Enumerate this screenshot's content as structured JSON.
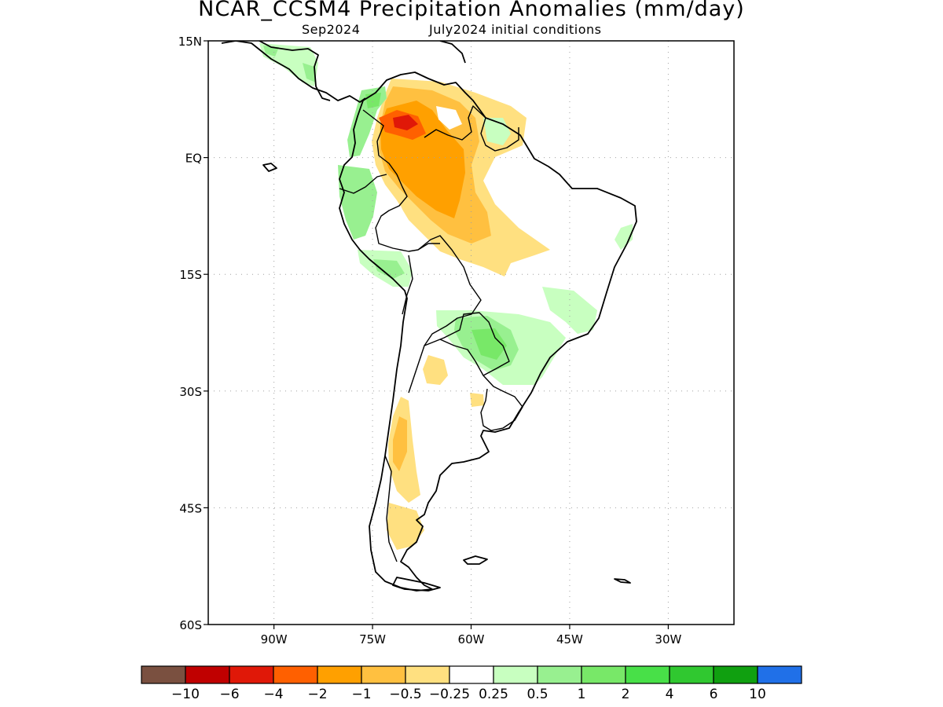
{
  "title": "NCAR_CCSM4 Precipitation Anomalies (mm/day)",
  "subtitle_left": "Sep2024",
  "subtitle_right": "July2024 initial conditions",
  "lat_labels": [
    "15N",
    "EQ",
    "15S",
    "30S",
    "45S",
    "60S"
  ],
  "lon_labels": [
    "90W",
    "75W",
    "60W",
    "45W",
    "30W"
  ],
  "lat_values": [
    15,
    0,
    -15,
    -30,
    -45,
    -60
  ],
  "lon_values": [
    -90,
    -75,
    -60,
    -45,
    -30
  ],
  "map_extent": {
    "lon_min": -100,
    "lon_max": -20,
    "lat_min": -60,
    "lat_max": 15
  },
  "colorbar": {
    "colors": [
      "#7a5040",
      "#c00000",
      "#e01808",
      "#ff6000",
      "#ffa000",
      "#ffc040",
      "#ffe080",
      "#ffffff",
      "#c8ffc0",
      "#98f090",
      "#78e868",
      "#48e048",
      "#30c830",
      "#10a010",
      "#2070e8"
    ],
    "labels": [
      "−10",
      "−6",
      "−4",
      "−2",
      "−1",
      "−0.5",
      "−0.25",
      "0.25",
      "0.5",
      "1",
      "2",
      "4",
      "6",
      "10"
    ]
  }
}
